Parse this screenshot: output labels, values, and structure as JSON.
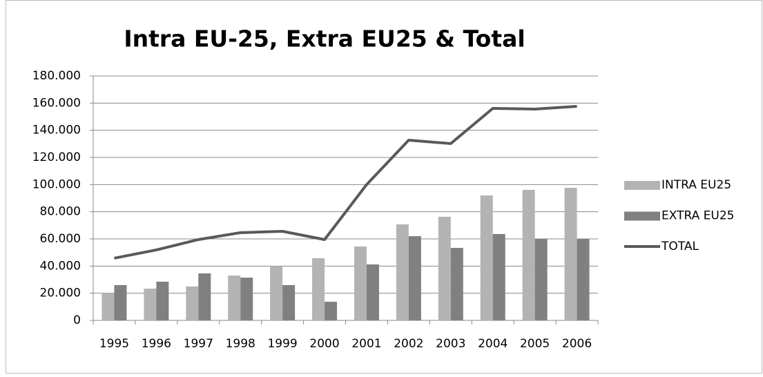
{
  "chart_data": {
    "type": "bar",
    "title": "Intra EU-25, Extra EU25 & Total",
    "categories": [
      "1995",
      "1996",
      "1997",
      "1998",
      "1999",
      "2000",
      "2001",
      "2002",
      "2003",
      "2004",
      "2005",
      "2006"
    ],
    "series": [
      {
        "name": "INTRA EU25",
        "type": "bar",
        "color": "#b3b3b3",
        "values": [
          20000,
          23400,
          25000,
          33000,
          40000,
          45800,
          54400,
          70700,
          76300,
          92000,
          96100,
          97600
        ]
      },
      {
        "name": "EXTRA EU25",
        "type": "bar",
        "color": "#808080",
        "values": [
          26000,
          28500,
          34600,
          31500,
          26000,
          13700,
          41200,
          62000,
          53400,
          63600,
          60000,
          60000
        ]
      },
      {
        "name": "TOTAL",
        "type": "line",
        "color": "#595959",
        "values": [
          45800,
          51900,
          59500,
          64600,
          65600,
          59500,
          100000,
          132700,
          130200,
          156100,
          155600,
          157600
        ]
      }
    ],
    "ylim": [
      0,
      180000
    ],
    "yticks": [
      0,
      {
        "value": 20000,
        "label": "20.000"
      },
      {
        "value": 40000,
        "label": "40.000"
      },
      {
        "value": 60000,
        "label": "60.000"
      },
      {
        "value": 80000,
        "label": "80.000"
      },
      {
        "value": 100000,
        "label": "100.000"
      },
      {
        "value": 120000,
        "label": "120.000"
      },
      {
        "value": 140000,
        "label": "140.000"
      },
      {
        "value": 160000,
        "label": "160.000"
      },
      {
        "value": 180000,
        "label": "180.000"
      }
    ],
    "grid": true,
    "legend": "right"
  }
}
